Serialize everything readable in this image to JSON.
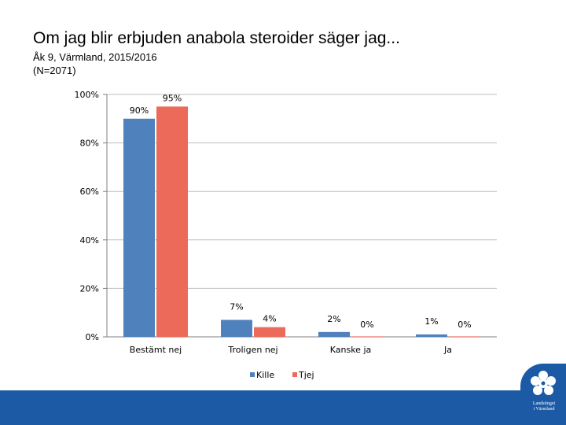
{
  "header": {
    "title": "Om jag blir erbjuden anabola steroider säger jag...",
    "subtitle_line1": "Åk 9, Värmland, 2015/2016",
    "subtitle_line2": "(N=2071)"
  },
  "logo": {
    "line1": "Landstinget",
    "line2": "i Värmland"
  },
  "colors": {
    "kille": "#4f81bd",
    "tjej": "#ec6a5a",
    "band": "#1c5aa6"
  },
  "chart_data": {
    "type": "bar",
    "title": "Om jag blir erbjuden anabola steroider säger jag...",
    "xlabel": "",
    "ylabel": "",
    "ylim": [
      0,
      100
    ],
    "yticks": [
      "0%",
      "20%",
      "40%",
      "60%",
      "80%",
      "100%"
    ],
    "categories": [
      "Bestämt nej",
      "Troligen nej",
      "Kanske ja",
      "Ja"
    ],
    "series": [
      {
        "name": "Kille",
        "values": [
          90,
          7,
          2,
          1
        ],
        "labels": [
          "90%",
          "7%",
          "2%",
          "1%"
        ]
      },
      {
        "name": "Tjej",
        "values": [
          95,
          4,
          0,
          0
        ],
        "labels": [
          "95%",
          "4%",
          "0%",
          "0%"
        ]
      }
    ],
    "legend": "bottom",
    "grid": true
  }
}
